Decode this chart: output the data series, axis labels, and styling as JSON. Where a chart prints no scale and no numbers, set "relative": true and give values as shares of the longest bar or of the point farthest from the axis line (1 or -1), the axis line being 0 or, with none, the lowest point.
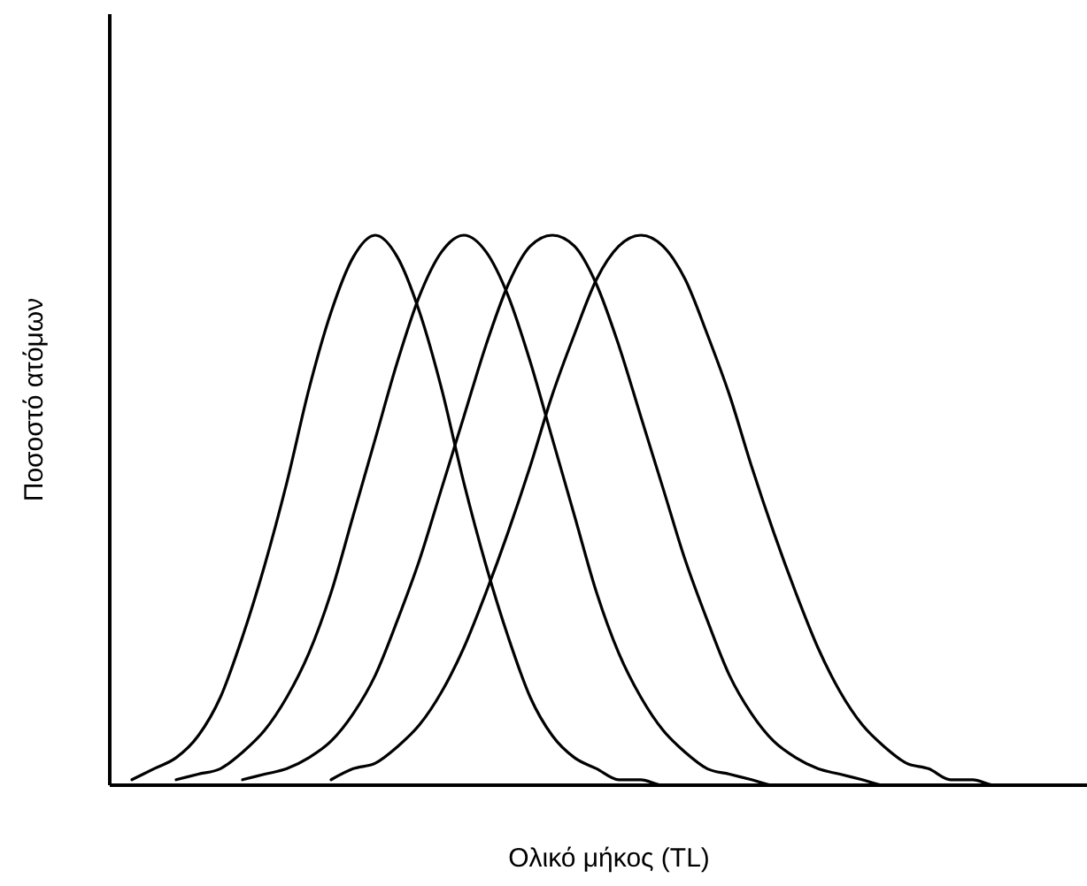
{
  "chart_data": {
    "type": "line",
    "relative": true,
    "xlabel": "Ολικό μήκος (TL)",
    "ylabel": "Ποσοστό ατόμων",
    "categories": [
      null,
      null,
      null,
      null,
      null,
      null,
      null,
      null,
      null,
      null,
      null,
      null,
      null,
      null,
      null,
      null,
      null,
      null,
      null,
      null,
      null,
      null,
      null,
      null,
      null,
      null,
      null,
      null,
      null,
      null,
      null,
      null,
      null,
      null,
      null,
      null,
      null,
      null,
      null,
      null,
      null,
      null,
      null,
      null,
      null
    ],
    "series": [
      {
        "color": "#000000",
        "values": [
          null,
          0.01,
          0.03,
          0.05,
          0.09,
          0.16,
          0.27,
          0.4,
          0.55,
          0.72,
          0.86,
          0.96,
          1,
          0.96,
          0.86,
          0.72,
          0.55,
          0.4,
          0.27,
          0.16,
          0.09,
          0.05,
          0.03,
          0.01,
          0.01,
          0,
          0,
          null,
          null,
          null,
          null,
          null,
          null,
          null,
          null,
          null,
          null,
          null,
          null,
          null,
          null,
          null,
          null,
          null,
          null
        ]
      },
      {
        "color": "#000000",
        "values": [
          null,
          null,
          null,
          0.01,
          0.02,
          0.03,
          0.06,
          0.1,
          0.16,
          0.24,
          0.35,
          0.49,
          0.63,
          0.77,
          0.89,
          0.97,
          1,
          0.97,
          0.89,
          0.77,
          0.63,
          0.49,
          0.35,
          0.24,
          0.16,
          0.1,
          0.06,
          0.03,
          0.02,
          0.01,
          0,
          0,
          0,
          null,
          null,
          null,
          null,
          null,
          null,
          null,
          null,
          null,
          null,
          null,
          null
        ]
      },
      {
        "color": "#000000",
        "values": [
          null,
          null,
          null,
          null,
          null,
          null,
          0.01,
          0.02,
          0.03,
          0.05,
          0.08,
          0.13,
          0.2,
          0.3,
          0.41,
          0.54,
          0.67,
          0.8,
          0.91,
          0.98,
          1,
          0.98,
          0.91,
          0.8,
          0.67,
          0.54,
          0.41,
          0.3,
          0.2,
          0.13,
          0.08,
          0.05,
          0.03,
          0.02,
          0.01,
          0,
          0,
          0,
          null,
          null,
          null,
          null,
          null,
          null,
          null
        ]
      },
      {
        "color": "#000000",
        "values": [
          null,
          null,
          null,
          null,
          null,
          null,
          null,
          null,
          null,
          null,
          0.01,
          0.03,
          0.04,
          0.07,
          0.11,
          0.17,
          0.25,
          0.35,
          0.46,
          0.58,
          0.71,
          0.82,
          0.92,
          0.98,
          1,
          0.98,
          0.92,
          0.82,
          0.71,
          0.58,
          0.46,
          0.35,
          0.25,
          0.17,
          0.11,
          0.07,
          0.04,
          0.03,
          0.01,
          0.01,
          0,
          0,
          0,
          null,
          null
        ]
      }
    ]
  }
}
